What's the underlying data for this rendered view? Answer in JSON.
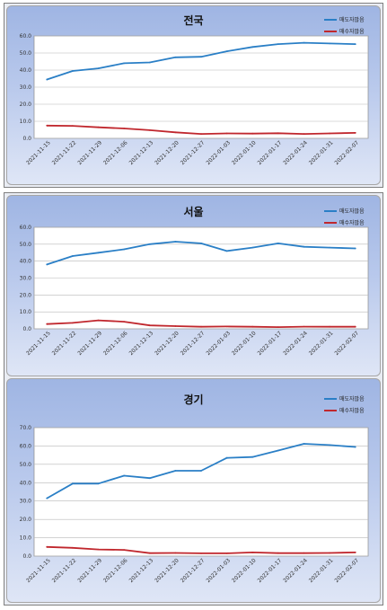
{
  "chart_data": [
    {
      "type": "line",
      "title": "전국",
      "categories": [
        "2021-11-15",
        "2021-11-22",
        "2021-11-29",
        "2021-12-06",
        "2021-12-13",
        "2021-12-20",
        "2021-12-27",
        "2022-01-03",
        "2022-01-10",
        "2022-01-17",
        "2022-01-24",
        "2022-01-31",
        "2022-02-07"
      ],
      "ylim": [
        0,
        60
      ],
      "yticks": [
        "0.0",
        "10.0",
        "20.0",
        "30.0",
        "40.0",
        "50.0",
        "60.0"
      ],
      "grid": true,
      "legend": "top-right",
      "series": [
        {
          "name": "매도자많음",
          "color": "#2a7fc6",
          "values": [
            34.5,
            39.5,
            41.0,
            44.0,
            44.5,
            47.5,
            47.8,
            51.0,
            53.5,
            55.2,
            56.0,
            55.6,
            55.2
          ]
        },
        {
          "name": "매수자많음",
          "color": "#c0272d",
          "values": [
            7.5,
            7.3,
            6.5,
            5.8,
            4.8,
            3.5,
            2.6,
            2.9,
            2.8,
            3.0,
            2.6,
            2.9,
            3.2
          ]
        }
      ]
    },
    {
      "type": "line",
      "title": "서울",
      "categories": [
        "2021-11-15",
        "2021-11-22",
        "2021-11-29",
        "2021-12-06",
        "2021-12-13",
        "2021-12-20",
        "2021-12-27",
        "2022-01-03",
        "2022-01-10",
        "2022-01-17",
        "2022-01-24",
        "2022-01-31",
        "2022-02-07"
      ],
      "ylim": [
        0,
        60
      ],
      "yticks": [
        "0.0",
        "10.0",
        "20.0",
        "30.0",
        "40.0",
        "50.0",
        "60.0"
      ],
      "grid": true,
      "legend": "top-right",
      "series": [
        {
          "name": "매도자많음",
          "color": "#2a7fc6",
          "values": [
            38.0,
            43.0,
            45.0,
            47.0,
            50.0,
            51.5,
            50.5,
            46.0,
            48.0,
            50.5,
            48.5,
            48.0,
            47.5
          ]
        },
        {
          "name": "매수자많음",
          "color": "#c0272d",
          "values": [
            2.8,
            3.5,
            5.0,
            4.2,
            2.0,
            1.6,
            1.2,
            1.4,
            1.2,
            1.0,
            1.3,
            1.2,
            1.2
          ]
        }
      ]
    },
    {
      "type": "line",
      "title": "경기",
      "categories": [
        "2021-11-15",
        "2021-11-22",
        "2021-11-29",
        "2021-12-06",
        "2021-12-13",
        "2021-12-20",
        "2021-12-27",
        "2022-01-03",
        "2022-01-10",
        "2022-01-17",
        "2022-01-24",
        "2022-01-31",
        "2022-02-07"
      ],
      "ylim": [
        0,
        70
      ],
      "yticks": [
        "0.0",
        "10.0",
        "20.0",
        "30.0",
        "40.0",
        "50.0",
        "60.0",
        "70.0"
      ],
      "grid": true,
      "legend": "top-right",
      "series": [
        {
          "name": "매도자많음",
          "color": "#2a7fc6",
          "values": [
            31.5,
            39.5,
            39.5,
            43.8,
            42.5,
            46.5,
            46.5,
            53.5,
            54.0,
            57.5,
            61.2,
            60.5,
            59.5
          ]
        },
        {
          "name": "매수자많음",
          "color": "#c0272d",
          "values": [
            5.0,
            4.5,
            3.6,
            3.4,
            1.6,
            1.7,
            1.5,
            1.5,
            2.0,
            1.6,
            1.6,
            1.7,
            2.0
          ]
        }
      ]
    }
  ]
}
